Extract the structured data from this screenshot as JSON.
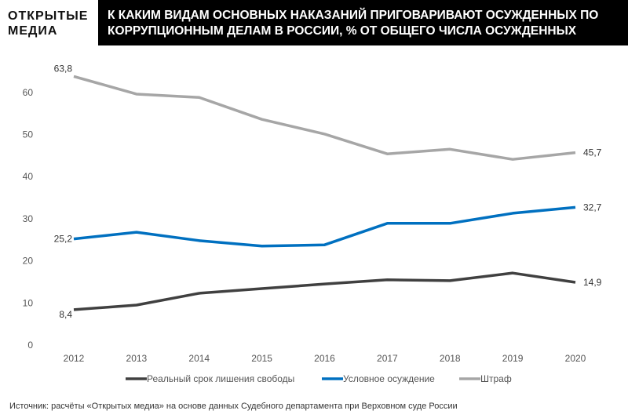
{
  "logo": {
    "line1": "ОТКРЫТЫЕ",
    "line2": "МЕДИА"
  },
  "header": {
    "line1": "К КАКИМ ВИДАМ ОСНОВНЫХ НАКАЗАНИЙ ПРИГОВАРИВАЮТ ОСУЖДЕННЫХ ПО",
    "line2": "КОРРУПЦИОННЫМ ДЕЛАМ В РОССИИ, % ОТ ОБЩЕГО ЧИСЛА ОСУЖДЕННЫХ"
  },
  "source": "Источник: расчёты «Открытых медиа» на основе данных Судебного департамента при Верховном суде России",
  "chart_data": {
    "type": "line",
    "title": "К КАКИМ ВИДАМ ОСНОВНЫХ НАКАЗАНИЙ ПРИГОВАРИВАЮТ ОСУЖДЕННЫХ ПО КОРРУПЦИОННЫМ ДЕЛАМ В РОССИИ, % ОТ ОБЩЕГО ЧИСЛА ОСУЖДЕННЫХ",
    "x": [
      "2012",
      "2013",
      "2014",
      "2015",
      "2016",
      "2017",
      "2018",
      "2019",
      "2020"
    ],
    "yticks": [
      0,
      10,
      20,
      30,
      40,
      50,
      60
    ],
    "ylim": [
      0,
      65
    ],
    "grid": false,
    "legend": "bottom",
    "series": [
      {
        "name": "Реальный срок лишения свободы",
        "color": "#404040",
        "values": [
          8.4,
          9.5,
          12.3,
          13.4,
          14.5,
          15.5,
          15.3,
          17.1,
          14.9
        ],
        "labels": {
          "first": "8,4",
          "last": "14,9"
        }
      },
      {
        "name": "Условное осуждение",
        "color": "#0070c0",
        "values": [
          25.2,
          26.8,
          24.8,
          23.5,
          23.8,
          28.9,
          28.9,
          31.3,
          32.7
        ],
        "labels": {
          "first": "25,2",
          "last": "32,7"
        }
      },
      {
        "name": "Штраф",
        "color": "#a6a6a6",
        "values": [
          63.8,
          59.6,
          58.8,
          53.6,
          50.1,
          45.4,
          46.5,
          44.1,
          45.7
        ],
        "labels": {
          "first": "63,8",
          "last": "45,7"
        }
      }
    ]
  }
}
